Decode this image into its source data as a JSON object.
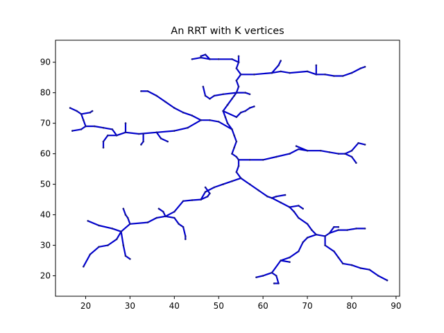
{
  "chart_data": {
    "type": "line",
    "title": "An RRT with K vertices",
    "xlabel": "",
    "ylabel": "",
    "xlim": [
      13.2,
      90.8
    ],
    "ylim": [
      13.3,
      97.2
    ],
    "xticks": [
      20,
      30,
      40,
      50,
      60,
      70,
      80,
      90
    ],
    "yticks": [
      20,
      30,
      40,
      50,
      60,
      70,
      80,
      90
    ],
    "grid": false,
    "edge_color": "#0000cc",
    "vertex_color": "#1a1a80",
    "series": [
      {
        "values": [
          [
            55,
            52
          ],
          [
            53,
            51
          ],
          [
            51,
            50
          ],
          [
            49,
            49
          ],
          [
            47,
            47.5
          ],
          [
            46,
            45
          ],
          [
            44,
            44.8
          ],
          [
            42,
            44.5
          ],
          [
            40,
            41
          ],
          [
            38,
            39.5
          ],
          [
            36,
            39
          ],
          [
            34,
            37.5
          ],
          [
            30,
            37
          ],
          [
            28,
            34.5
          ],
          [
            26,
            35.5
          ],
          [
            23,
            36.5
          ],
          [
            20.5,
            38
          ]
        ]
      },
      {
        "values": [
          [
            28,
            34.5
          ],
          [
            27,
            32
          ],
          [
            25,
            30
          ],
          [
            23,
            29.5
          ],
          [
            21,
            27
          ],
          [
            19.5,
            23
          ]
        ]
      },
      {
        "values": [
          [
            28,
            34.5
          ],
          [
            28.5,
            30
          ],
          [
            29,
            26.5
          ],
          [
            30,
            25.5
          ]
        ]
      },
      {
        "values": [
          [
            30,
            37
          ],
          [
            29.5,
            39
          ],
          [
            29,
            40
          ],
          [
            28.5,
            42
          ]
        ]
      },
      {
        "values": [
          [
            38,
            39.5
          ],
          [
            40,
            39
          ],
          [
            41,
            37
          ],
          [
            42,
            36
          ],
          [
            42.5,
            33
          ],
          [
            42.5,
            32
          ]
        ]
      },
      {
        "values": [
          [
            38,
            39.5
          ],
          [
            37.5,
            41
          ],
          [
            36.5,
            42
          ]
        ]
      },
      {
        "values": [
          [
            46,
            45
          ],
          [
            47.5,
            46
          ],
          [
            48,
            47
          ],
          [
            47,
            49
          ]
        ]
      },
      {
        "values": [
          [
            55,
            52
          ],
          [
            54,
            54
          ],
          [
            54.5,
            56
          ],
          [
            54.5,
            58
          ],
          [
            54,
            59
          ],
          [
            53,
            60
          ],
          [
            53.5,
            62
          ],
          [
            54,
            64
          ],
          [
            53.5,
            66
          ],
          [
            53,
            68
          ],
          [
            52,
            70
          ],
          [
            51.5,
            72
          ],
          [
            51,
            74
          ],
          [
            52,
            76
          ]
        ]
      },
      {
        "values": [
          [
            54.5,
            58
          ],
          [
            57,
            58
          ],
          [
            60,
            58
          ],
          [
            63,
            59
          ],
          [
            66,
            60
          ],
          [
            68,
            61.5
          ],
          [
            70,
            61
          ],
          [
            73,
            61
          ],
          [
            75,
            60.5
          ],
          [
            77,
            60
          ],
          [
            78.5,
            60
          ],
          [
            80,
            59
          ],
          [
            81,
            57
          ]
        ]
      },
      {
        "values": [
          [
            78.5,
            60
          ],
          [
            80,
            61
          ],
          [
            81.5,
            63.5
          ],
          [
            83,
            63
          ]
        ]
      },
      {
        "values": [
          [
            70,
            61
          ],
          [
            67.5,
            62.5
          ]
        ]
      },
      {
        "values": [
          [
            53,
            68
          ],
          [
            50,
            70.5
          ],
          [
            48,
            71
          ],
          [
            46,
            71
          ],
          [
            43,
            68.5
          ],
          [
            40,
            67.5
          ],
          [
            36,
            67
          ],
          [
            32,
            66.5
          ],
          [
            29,
            67
          ],
          [
            27,
            66
          ],
          [
            25,
            66
          ],
          [
            24,
            64
          ],
          [
            24,
            62
          ]
        ]
      },
      {
        "values": [
          [
            27,
            66
          ],
          [
            26,
            68
          ],
          [
            24,
            68.5
          ],
          [
            22,
            69
          ],
          [
            20,
            69
          ],
          [
            19,
            68
          ],
          [
            17,
            67.5
          ]
        ]
      },
      {
        "values": [
          [
            20,
            69
          ],
          [
            19.5,
            71
          ],
          [
            19,
            73
          ],
          [
            18,
            74
          ],
          [
            16.5,
            75
          ]
        ]
      },
      {
        "values": [
          [
            19,
            73
          ],
          [
            21,
            73.5
          ],
          [
            21.5,
            74
          ]
        ]
      },
      {
        "values": [
          [
            36,
            67
          ],
          [
            37,
            65
          ],
          [
            38.5,
            64
          ]
        ]
      },
      {
        "values": [
          [
            29,
            67
          ],
          [
            29,
            70
          ]
        ]
      },
      {
        "values": [
          [
            33,
            66.5
          ],
          [
            33,
            64
          ],
          [
            32.5,
            63
          ]
        ]
      },
      {
        "values": [
          [
            46,
            71
          ],
          [
            44,
            72.5
          ],
          [
            42,
            73.5
          ],
          [
            40,
            75
          ],
          [
            38,
            77
          ],
          [
            36,
            79
          ],
          [
            34,
            80.5
          ],
          [
            32.5,
            80.5
          ]
        ]
      },
      {
        "values": [
          [
            51,
            74
          ],
          [
            54,
            72
          ],
          [
            55,
            73.5
          ],
          [
            56,
            74
          ],
          [
            57,
            75
          ],
          [
            58,
            75.5
          ]
        ]
      },
      {
        "values": [
          [
            52,
            76
          ],
          [
            53,
            78
          ],
          [
            53.5,
            79
          ],
          [
            54,
            80
          ]
        ]
      },
      {
        "values": [
          [
            54,
            80
          ],
          [
            56,
            80
          ],
          [
            57,
            79.5
          ]
        ]
      },
      {
        "values": [
          [
            54,
            80
          ],
          [
            51,
            79.5
          ],
          [
            49,
            79
          ],
          [
            48,
            78
          ],
          [
            47,
            79
          ],
          [
            46.5,
            82
          ]
        ]
      },
      {
        "values": [
          [
            54,
            80
          ],
          [
            54.5,
            82
          ],
          [
            54,
            84
          ],
          [
            55,
            86
          ],
          [
            54,
            88
          ],
          [
            54.5,
            90
          ],
          [
            53,
            91
          ],
          [
            50,
            91
          ],
          [
            48,
            91
          ],
          [
            46,
            91.5
          ],
          [
            44,
            91
          ]
        ]
      },
      {
        "values": [
          [
            48,
            91
          ],
          [
            47,
            92.5
          ],
          [
            46,
            92
          ]
        ]
      },
      {
        "values": [
          [
            54.5,
            90
          ],
          [
            54.5,
            92
          ]
        ]
      },
      {
        "values": [
          [
            55,
            86
          ],
          [
            58,
            86
          ],
          [
            62,
            86.5
          ],
          [
            64,
            87
          ],
          [
            66,
            86.5
          ],
          [
            70,
            87
          ],
          [
            72,
            86
          ],
          [
            74,
            86
          ],
          [
            76,
            85.5
          ],
          [
            78,
            85.5
          ],
          [
            80,
            86.5
          ],
          [
            82,
            88
          ],
          [
            83,
            88.5
          ]
        ]
      },
      {
        "values": [
          [
            62,
            86.5
          ],
          [
            63.5,
            89
          ],
          [
            64,
            90.5
          ]
        ]
      },
      {
        "values": [
          [
            72,
            86
          ],
          [
            72,
            89
          ]
        ]
      },
      {
        "values": [
          [
            55,
            52
          ],
          [
            57,
            50
          ],
          [
            59,
            48
          ],
          [
            61,
            46
          ],
          [
            62,
            45.5
          ],
          [
            64,
            44
          ],
          [
            66,
            42.5
          ],
          [
            67,
            41
          ],
          [
            68,
            39
          ],
          [
            70,
            37
          ],
          [
            71,
            35
          ],
          [
            72,
            33.5
          ],
          [
            74,
            33
          ]
        ]
      },
      {
        "values": [
          [
            62,
            45.5
          ],
          [
            63,
            46
          ],
          [
            65,
            46.5
          ]
        ]
      },
      {
        "values": [
          [
            66,
            42.5
          ],
          [
            68,
            43
          ],
          [
            69,
            42
          ]
        ]
      },
      {
        "values": [
          [
            74,
            33
          ],
          [
            75,
            34
          ],
          [
            77,
            35
          ],
          [
            79,
            35
          ],
          [
            81,
            35.5
          ],
          [
            83,
            35.5
          ]
        ]
      },
      {
        "values": [
          [
            75,
            34
          ],
          [
            76,
            36
          ],
          [
            77,
            36
          ]
        ]
      },
      {
        "values": [
          [
            74,
            33
          ],
          [
            74,
            30
          ],
          [
            76,
            28
          ],
          [
            77,
            26
          ],
          [
            78,
            24
          ],
          [
            80,
            23.5
          ],
          [
            82,
            22.5
          ],
          [
            84,
            22
          ],
          [
            86,
            20
          ],
          [
            88,
            18.5
          ]
        ]
      },
      {
        "values": [
          [
            72,
            33.5
          ],
          [
            70,
            32.5
          ],
          [
            69,
            31
          ],
          [
            68,
            28
          ],
          [
            66,
            26
          ],
          [
            64,
            25
          ],
          [
            62,
            21
          ],
          [
            60,
            20
          ],
          [
            58.5,
            19.5
          ]
        ]
      },
      {
        "values": [
          [
            64,
            25
          ],
          [
            66,
            24.5
          ]
        ]
      },
      {
        "values": [
          [
            62,
            21
          ],
          [
            63,
            20
          ],
          [
            63.5,
            17.5
          ],
          [
            62.5,
            17.5
          ]
        ]
      }
    ]
  }
}
